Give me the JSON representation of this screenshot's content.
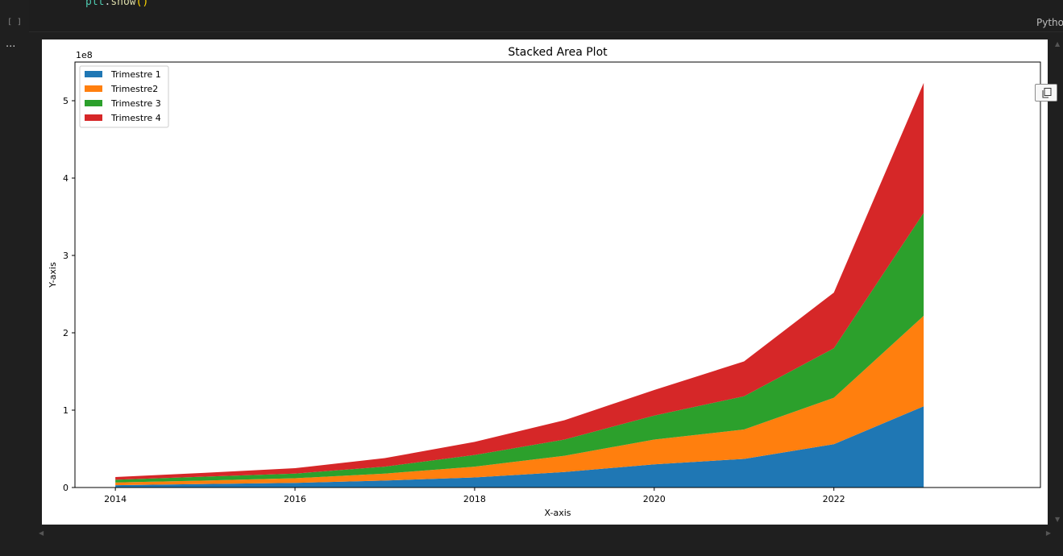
{
  "cell": {
    "code_module": "plt",
    "code_dot": ".",
    "code_function": "show",
    "code_parens": "()",
    "execution_count": "[ ]",
    "kernel": "Pytho",
    "output_prompt": "..."
  },
  "toolbar": {
    "copy_icon": "copy-icon",
    "save_icon": "save-icon"
  },
  "chart_data": {
    "type": "area",
    "stacked": true,
    "title": "Stacked Area Plot",
    "xlabel": "X-axis",
    "ylabel": "Y-axis",
    "y_offset_label": "1e8",
    "y_scale": 100000000,
    "x": [
      2014,
      2015,
      2016,
      2017,
      2018,
      2019,
      2020,
      2021,
      2022,
      2023
    ],
    "xlim": [
      2013.55,
      2024.3
    ],
    "ylim": [
      0,
      550000000
    ],
    "x_ticks": [
      2014,
      2016,
      2018,
      2020,
      2022
    ],
    "y_ticks": [
      0,
      1,
      2,
      3,
      4,
      5
    ],
    "grid": false,
    "legend_position": "upper left",
    "series": [
      {
        "name": "Trimestre 1",
        "color": "#1f77b4",
        "values": [
          3000000,
          4500000,
          6000000,
          9000000,
          13000000,
          20000000,
          30000000,
          37000000,
          56000000,
          105000000
        ]
      },
      {
        "name": "Trimestre2",
        "color": "#ff7f0e",
        "values": [
          3500000,
          4500000,
          6000000,
          9000000,
          14000000,
          21000000,
          32000000,
          38000000,
          60000000,
          117000000
        ]
      },
      {
        "name": "Trimestre 3",
        "color": "#2ca02c",
        "values": [
          3500000,
          5000000,
          6000000,
          9000000,
          15000000,
          21000000,
          31000000,
          43000000,
          64000000,
          133000000
        ]
      },
      {
        "name": "Trimestre 4",
        "color": "#d62728",
        "values": [
          3500000,
          5000000,
          7000000,
          11000000,
          17000000,
          25000000,
          33000000,
          45000000,
          72000000,
          168000000
        ]
      }
    ]
  }
}
